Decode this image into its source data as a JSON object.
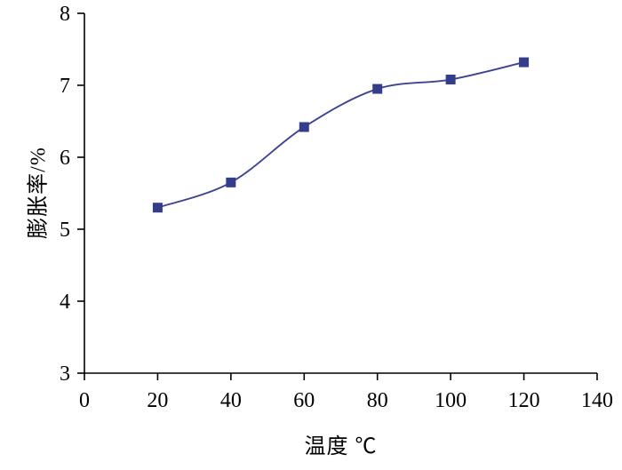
{
  "chart_data": {
    "type": "line",
    "x": [
      20,
      40,
      60,
      80,
      100,
      120
    ],
    "y": [
      5.3,
      5.65,
      6.42,
      6.95,
      7.08,
      7.32
    ],
    "series": [
      {
        "name": "膨胀率",
        "values": [
          5.3,
          5.65,
          6.42,
          6.95,
          7.08,
          7.32
        ]
      }
    ],
    "title": "",
    "xlabel": "温度 ℃",
    "ylabel": "膨胀率/%",
    "xlim": [
      0,
      140
    ],
    "ylim": [
      3,
      8
    ],
    "xticks": [
      0,
      20,
      40,
      60,
      80,
      100,
      120,
      140
    ],
    "yticks": [
      3,
      4,
      5,
      6,
      7,
      8
    ],
    "grid": false,
    "legend_position": "none",
    "marker": "square",
    "colors": {
      "line": "#3d4493",
      "marker": "#343c8c",
      "axis": "#000000",
      "background": "#ffffff"
    }
  }
}
